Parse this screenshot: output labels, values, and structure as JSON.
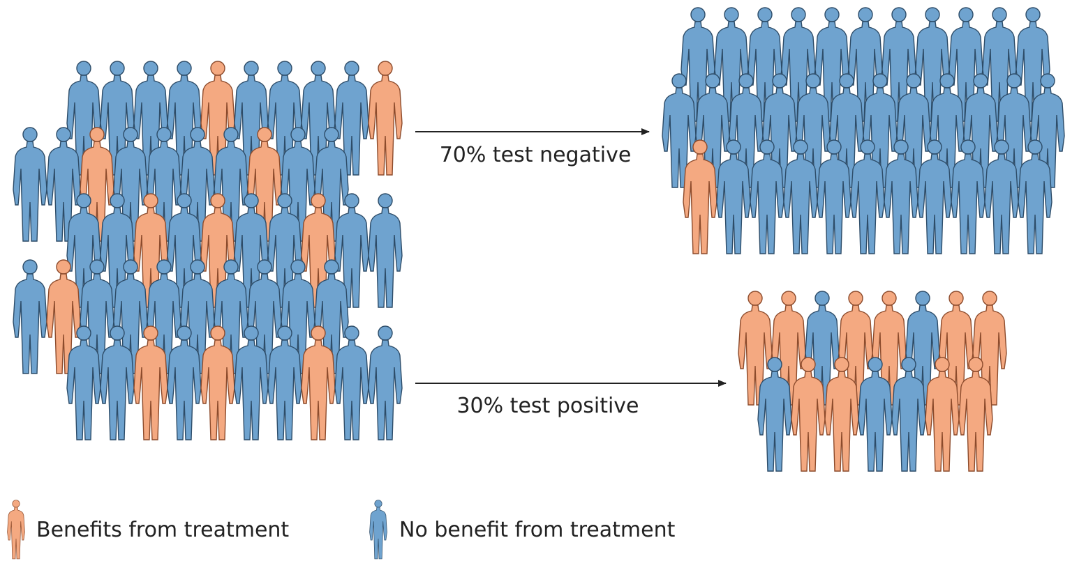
{
  "arrows": [
    {
      "label": "70% test negative"
    },
    {
      "label": "30% test positive"
    }
  ],
  "legend": [
    {
      "label": "Benefits from treatment"
    },
    {
      "label": "No benefit from treatment"
    }
  ]
}
